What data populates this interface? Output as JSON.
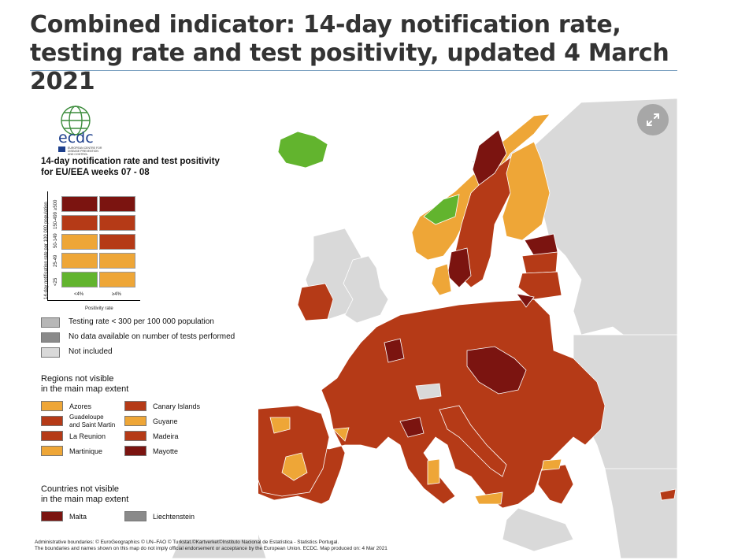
{
  "page": {
    "title": "Combined indicator: 14-day notification rate, testing rate and test positivity, updated 4 March 2021"
  },
  "colors": {
    "dark_red": "#7b1410",
    "red": "#b53a17",
    "orange": "#eea637",
    "green": "#62b42e",
    "light_grey": "#d9d9d9",
    "mid_grey": "#b7b7b7",
    "dark_grey": "#8a8a8a",
    "sea": "#ffffff",
    "expand_button": "#a7a7a7"
  },
  "map": {
    "expand_icon": "expand-arrows-icon",
    "logo": {
      "wordmark": "ecdc",
      "subtitle_line1": "EUROPEAN CENTRE FOR",
      "subtitle_line2": "DISEASE PREVENTION",
      "subtitle_line3": "AND CONTROL"
    },
    "legend": {
      "title_line1": "14-day notification rate and test positivity",
      "title_line2": "for EU/EEA weeks 07 - 08",
      "y_axis_title": "14-day notification rate per 100 000 population",
      "x_axis_title": "Positivity rate",
      "rows": [
        {
          "label": "≥500",
          "low": "dark_red",
          "high": "dark_red"
        },
        {
          "label": "150-499",
          "low": "red",
          "high": "red"
        },
        {
          "label": "50-149",
          "low": "orange",
          "high": "red"
        },
        {
          "label": "25-49",
          "low": "orange",
          "high": "orange"
        },
        {
          "label": "<25",
          "low": "green",
          "high": "orange"
        }
      ],
      "columns": [
        "<4%",
        "≥4%"
      ],
      "keys": [
        {
          "label": "Testing rate < 300 per 100 000 population",
          "color": "mid_grey"
        },
        {
          "label": "No data available on number of tests performed",
          "color": "dark_grey"
        },
        {
          "label": "Not included",
          "color": "light_grey"
        }
      ],
      "regions_title_line1": "Regions not visible",
      "regions_title_line2": "in the main map extent",
      "regions": [
        {
          "label": "Azores",
          "color": "orange"
        },
        {
          "label": "Canary Islands",
          "color": "red"
        },
        {
          "label": "Guadeloupe and Saint Martin",
          "color": "red",
          "line1": "Guadeloupe",
          "line2": "and Saint Martin"
        },
        {
          "label": "Guyane",
          "color": "orange"
        },
        {
          "label": "La Reunion",
          "color": "red"
        },
        {
          "label": "Madeira",
          "color": "red"
        },
        {
          "label": "Martinique",
          "color": "orange"
        },
        {
          "label": "Mayotte",
          "color": "dark_red"
        }
      ],
      "countries_title_line1": "Countries not visible",
      "countries_title_line2": "in the main map extent",
      "countries": [
        {
          "label": "Malta",
          "color": "dark_red"
        },
        {
          "label": "Liechtenstein",
          "color": "dark_grey"
        }
      ]
    },
    "credits_line1": "Administrative boundaries: © EuroGeographics © UN–FAO © Turkstat.©Kartverket©Instituto Nacional de Estatística - Statistics Portugal.",
    "credits_line2": "The boundaries and names shown on this map do not imply official endorsement or acceptance by the European Union. ECDC. Map produced on: 4 Mar 2021"
  }
}
